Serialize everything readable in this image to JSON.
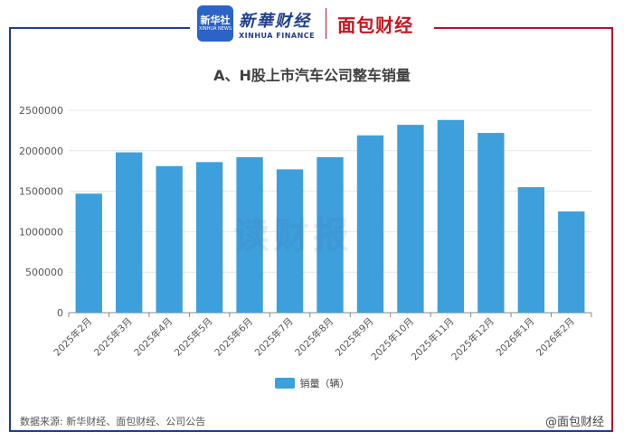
{
  "header": {
    "logo_text": "新华社",
    "logo_small": "XINHUA NEWS",
    "brand1_cn": "新華财经",
    "brand1_en": "XINHUA FINANCE",
    "brand2": "面包财经"
  },
  "colors": {
    "bar": "#3d9fdb",
    "axis": "#888888",
    "grid": "#e6e6e6"
  },
  "chart_data": {
    "type": "bar",
    "title": "A、H股上市汽车公司整车销量",
    "categories": [
      "2025年2月",
      "2025年3月",
      "2025年4月",
      "2025年5月",
      "2025年6月",
      "2025年7月",
      "2025年8月",
      "2025年9月",
      "2025年10月",
      "2025年11月",
      "2025年12月",
      "2026年1月",
      "2026年2月"
    ],
    "series": [
      {
        "name": "销量（辆）",
        "values": [
          1470000,
          1980000,
          1810000,
          1860000,
          1920000,
          1770000,
          1920000,
          2190000,
          2320000,
          2380000,
          2220000,
          1550000,
          1250000
        ]
      }
    ],
    "yticks": [
      "0",
      "500000",
      "1000000",
      "1500000",
      "2000000",
      "2500000"
    ],
    "ylim": [
      0,
      2500000
    ],
    "grid": true,
    "legend": "bottom-center"
  },
  "watermark": "读财报",
  "source": "数据来源: 新华财经、面包财经、公司公告",
  "credit": "@面包财经"
}
